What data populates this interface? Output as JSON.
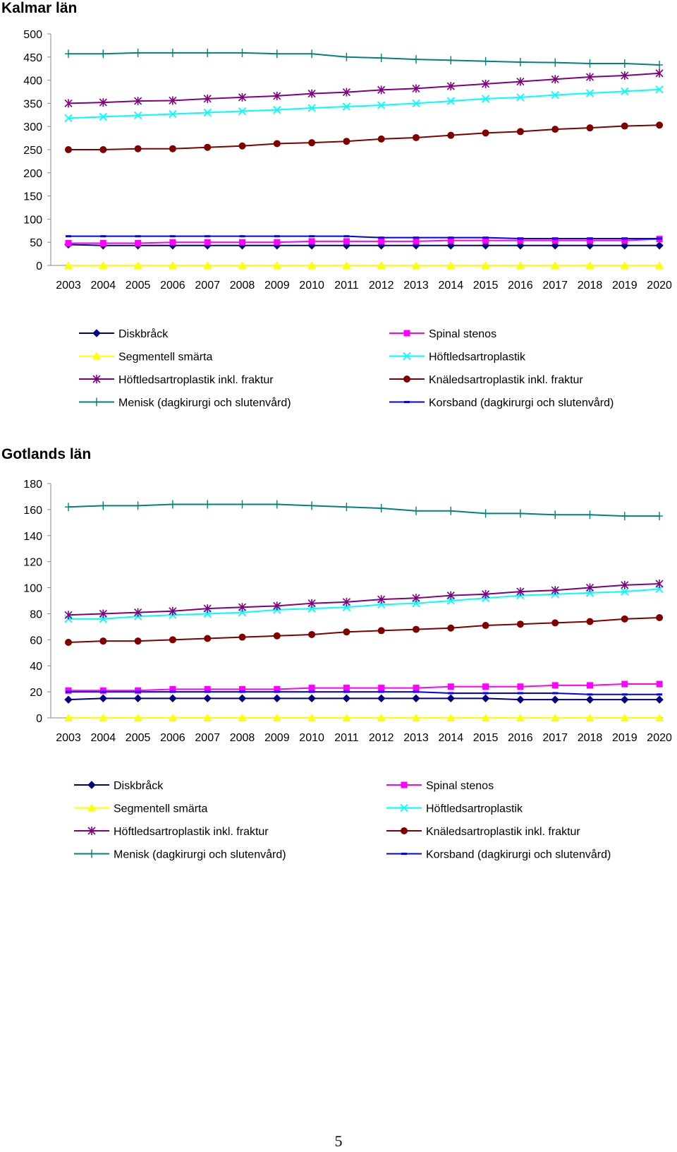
{
  "page": {
    "number": "5"
  },
  "chart_data": [
    {
      "type": "line",
      "title": "Kalmar län",
      "xlabel": "",
      "ylabel": "",
      "ylim": [
        0,
        500
      ],
      "yticks": [
        0,
        50,
        100,
        150,
        200,
        250,
        300,
        350,
        400,
        450,
        500
      ],
      "grid": false,
      "legend_position": "bottom",
      "categories": [
        "2003",
        "2004",
        "2005",
        "2006",
        "2007",
        "2008",
        "2009",
        "2010",
        "2011",
        "2012",
        "2013",
        "2014",
        "2015",
        "2016",
        "2017",
        "2018",
        "2019",
        "2020"
      ],
      "series": [
        {
          "name": "Diskbråck",
          "color": "#000080",
          "marker": "diamond",
          "values": [
            45,
            43,
            43,
            43,
            43,
            43,
            43,
            43,
            43,
            43,
            43,
            43,
            43,
            43,
            43,
            43,
            43,
            43
          ]
        },
        {
          "name": "Spinal stenos",
          "color": "#ff00ff",
          "marker": "square",
          "values": [
            48,
            48,
            48,
            50,
            50,
            50,
            50,
            52,
            52,
            52,
            52,
            54,
            54,
            54,
            54,
            54,
            54,
            57
          ]
        },
        {
          "name": "Segmentell smärta",
          "color": "#ffff00",
          "marker": "triangle",
          "values": [
            0,
            0,
            0,
            0,
            0,
            0,
            0,
            0,
            0,
            0,
            0,
            0,
            0,
            0,
            0,
            0,
            0,
            0
          ]
        },
        {
          "name": "Höftledsartroplastik",
          "color": "#00ffff",
          "marker": "x",
          "values": [
            318,
            321,
            324,
            327,
            330,
            333,
            336,
            340,
            343,
            346,
            350,
            355,
            360,
            363,
            368,
            372,
            376,
            380
          ]
        },
        {
          "name": "Höftledsartroplastik inkl. fraktur",
          "color": "#800080",
          "marker": "star",
          "values": [
            350,
            352,
            355,
            356,
            360,
            363,
            366,
            371,
            374,
            379,
            382,
            387,
            392,
            397,
            402,
            407,
            410,
            415
          ]
        },
        {
          "name": "Knäledsartroplastik inkl. fraktur",
          "color": "#800000",
          "marker": "circle",
          "values": [
            250,
            250,
            252,
            252,
            255,
            258,
            263,
            265,
            268,
            273,
            276,
            281,
            286,
            289,
            294,
            297,
            301,
            303
          ]
        },
        {
          "name": "Menisk (dagkirurgi och slutenvård)",
          "color": "#008080",
          "marker": "plus",
          "values": [
            457,
            457,
            459,
            459,
            459,
            459,
            457,
            457,
            450,
            448,
            445,
            443,
            441,
            439,
            438,
            436,
            436,
            433
          ]
        },
        {
          "name": "Korsband (dagkirurgi och slutenvård)",
          "color": "#0000ff",
          "marker": "dash",
          "values": [
            63,
            63,
            63,
            63,
            63,
            63,
            63,
            63,
            63,
            60,
            60,
            60,
            60,
            58,
            58,
            58,
            58,
            58
          ]
        }
      ]
    },
    {
      "type": "line",
      "title": "Gotlands län",
      "xlabel": "",
      "ylabel": "",
      "ylim": [
        0,
        180
      ],
      "yticks": [
        0,
        20,
        40,
        60,
        80,
        100,
        120,
        140,
        160,
        180
      ],
      "grid": false,
      "legend_position": "bottom",
      "categories": [
        "2003",
        "2004",
        "2005",
        "2006",
        "2007",
        "2008",
        "2009",
        "2010",
        "2011",
        "2012",
        "2013",
        "2014",
        "2015",
        "2016",
        "2017",
        "2018",
        "2019",
        "2020"
      ],
      "series": [
        {
          "name": "Diskbråck",
          "color": "#000080",
          "marker": "diamond",
          "values": [
            14,
            15,
            15,
            15,
            15,
            15,
            15,
            15,
            15,
            15,
            15,
            15,
            15,
            14,
            14,
            14,
            14,
            14
          ]
        },
        {
          "name": "Spinal stenos",
          "color": "#ff00ff",
          "marker": "square",
          "values": [
            21,
            21,
            21,
            22,
            22,
            22,
            22,
            23,
            23,
            23,
            23,
            24,
            24,
            24,
            25,
            25,
            26,
            26
          ]
        },
        {
          "name": "Segmentell smärta",
          "color": "#ffff00",
          "marker": "triangle",
          "values": [
            0,
            0,
            0,
            0,
            0,
            0,
            0,
            0,
            0,
            0,
            0,
            0,
            0,
            0,
            0,
            0,
            0,
            0
          ]
        },
        {
          "name": "Höftledsartroplastik",
          "color": "#00ffff",
          "marker": "x",
          "values": [
            76,
            76,
            78,
            79,
            80,
            81,
            83,
            84,
            85,
            87,
            88,
            90,
            92,
            94,
            95,
            96,
            97,
            99
          ]
        },
        {
          "name": "Höftledsartroplastik inkl. fraktur",
          "color": "#800080",
          "marker": "star",
          "values": [
            79,
            80,
            81,
            82,
            84,
            85,
            86,
            88,
            89,
            91,
            92,
            94,
            95,
            97,
            98,
            100,
            102,
            103
          ]
        },
        {
          "name": "Knäledsartroplastik inkl. fraktur",
          "color": "#800000",
          "marker": "circle",
          "values": [
            58,
            59,
            59,
            60,
            61,
            62,
            63,
            64,
            66,
            67,
            68,
            69,
            71,
            72,
            73,
            74,
            76,
            77
          ]
        },
        {
          "name": "Menisk (dagkirurgi och slutenvård)",
          "color": "#008080",
          "marker": "plus",
          "values": [
            162,
            163,
            163,
            164,
            164,
            164,
            164,
            163,
            162,
            161,
            159,
            159,
            157,
            157,
            156,
            156,
            155,
            155
          ]
        },
        {
          "name": "Korsband (dagkirurgi och slutenvård)",
          "color": "#0000ff",
          "marker": "dash",
          "values": [
            20,
            20,
            20,
            20,
            20,
            20,
            20,
            20,
            20,
            20,
            20,
            19,
            19,
            19,
            19,
            18,
            18,
            18
          ]
        }
      ]
    }
  ]
}
